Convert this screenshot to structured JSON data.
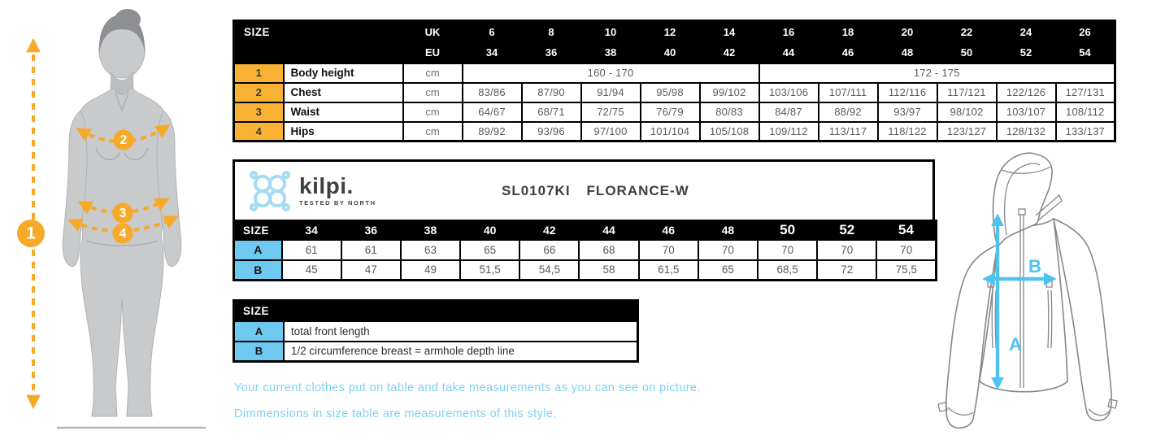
{
  "colors": {
    "table_orange": "#f9b233",
    "cell_blue": "#6ec9f0",
    "diagram_orange": "#f7a929",
    "arrow_blue": "#4fc3f0",
    "note_blue": "#7fd0f2",
    "header_black": "#000000",
    "value_gray": "#58595b"
  },
  "top_table": {
    "corner_label": "SIZE",
    "uk_label": "UK",
    "eu_label": "EU",
    "uk_sizes": [
      "6",
      "8",
      "10",
      "12",
      "14",
      "16",
      "18",
      "20",
      "22",
      "24",
      "26"
    ],
    "eu_sizes": [
      "34",
      "36",
      "38",
      "40",
      "42",
      "44",
      "46",
      "48",
      "50",
      "52",
      "54"
    ],
    "rows": [
      {
        "num": "1",
        "label": "Body height",
        "unit": "cm",
        "cells": [
          {
            "text": "160 - 170",
            "span": 5
          },
          {
            "text": "172 - 175",
            "span": 6
          }
        ]
      },
      {
        "num": "2",
        "label": "Chest",
        "unit": "cm",
        "cells": [
          {
            "text": "83/86",
            "span": 1
          },
          {
            "text": "87/90",
            "span": 1
          },
          {
            "text": "91/94",
            "span": 1
          },
          {
            "text": "95/98",
            "span": 1
          },
          {
            "text": "99/102",
            "span": 1
          },
          {
            "text": "103/106",
            "span": 1
          },
          {
            "text": "107/111",
            "span": 1
          },
          {
            "text": "112/116",
            "span": 1
          },
          {
            "text": "117/121",
            "span": 1
          },
          {
            "text": "122/126",
            "span": 1
          },
          {
            "text": "127/131",
            "span": 1
          }
        ]
      },
      {
        "num": "3",
        "label": "Waist",
        "unit": "cm",
        "cells": [
          {
            "text": "64/67",
            "span": 1
          },
          {
            "text": "68/71",
            "span": 1
          },
          {
            "text": "72/75",
            "span": 1
          },
          {
            "text": "76/79",
            "span": 1
          },
          {
            "text": "80/83",
            "span": 1
          },
          {
            "text": "84/87",
            "span": 1
          },
          {
            "text": "88/92",
            "span": 1
          },
          {
            "text": "93/97",
            "span": 1
          },
          {
            "text": "98/102",
            "span": 1
          },
          {
            "text": "103/107",
            "span": 1
          },
          {
            "text": "108/112",
            "span": 1
          }
        ]
      },
      {
        "num": "4",
        "label": "Hips",
        "unit": "cm",
        "cells": [
          {
            "text": "89/92",
            "span": 1
          },
          {
            "text": "93/96",
            "span": 1
          },
          {
            "text": "97/100",
            "span": 1
          },
          {
            "text": "101/104",
            "span": 1
          },
          {
            "text": "105/108",
            "span": 1
          },
          {
            "text": "109/112",
            "span": 1
          },
          {
            "text": "113/117",
            "span": 1
          },
          {
            "text": "118/122",
            "span": 1
          },
          {
            "text": "123/127",
            "span": 1
          },
          {
            "text": "128/132",
            "span": 1
          },
          {
            "text": "133/137",
            "span": 1
          }
        ]
      }
    ]
  },
  "product": {
    "brand": "kilpi.",
    "brand_tagline": "Tested by North",
    "code": "SL0107KI",
    "name": "FLORANCE-W"
  },
  "product_table": {
    "corner_label": "SIZE",
    "sizes": [
      "34",
      "36",
      "38",
      "40",
      "42",
      "44",
      "46",
      "48",
      "50",
      "52",
      "54"
    ],
    "rows": [
      {
        "label": "A",
        "values": [
          "61",
          "61",
          "63",
          "65",
          "66",
          "68",
          "70",
          "70",
          "70",
          "70",
          "70"
        ]
      },
      {
        "label": "B",
        "values": [
          "45",
          "47",
          "49",
          "51,5",
          "54,5",
          "58",
          "61,5",
          "65",
          "68,5",
          "72",
          "75,5"
        ]
      }
    ]
  },
  "legend_table": {
    "header": "SIZE",
    "rows": [
      {
        "label": "A",
        "description": "total front length"
      },
      {
        "label": "B",
        "description": "1/2 circumference breast = armhole depth line"
      }
    ]
  },
  "notes": {
    "line1": "Your current clothes put on table and take measurements as you can see on picture.",
    "line2": "Dimmensions in size table are measurements of this style."
  },
  "body_diagram": {
    "height_label": "1",
    "chest_label": "2",
    "waist_label": "3",
    "hips_label": "4"
  },
  "jacket_diagram": {
    "front_length_label": "A",
    "chest_width_label": "B"
  }
}
